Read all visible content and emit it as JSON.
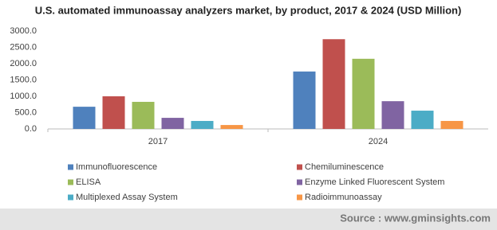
{
  "chart_data": {
    "type": "bar",
    "title": "U.S. automated immunoassay analyzers market, by product, 2017 & 2024 (USD Million)",
    "categories": [
      "2017",
      "2024"
    ],
    "series": [
      {
        "name": "Immunofluorescence",
        "color": "#4f81bd",
        "values": [
          680,
          1760
        ]
      },
      {
        "name": "Chemiluminescence",
        "color": "#c0504d",
        "values": [
          1000,
          2750
        ]
      },
      {
        "name": "ELISA",
        "color": "#9bbb59",
        "values": [
          830,
          2150
        ]
      },
      {
        "name": "Enzyme Linked Fluorescent System",
        "color": "#8064a2",
        "values": [
          340,
          850
        ]
      },
      {
        "name": "Multiplexed Assay System",
        "color": "#4bacc6",
        "values": [
          245,
          560
        ]
      },
      {
        "name": "Radioimmunoassay",
        "color": "#f79646",
        "values": [
          120,
          245
        ]
      }
    ],
    "ylim": [
      0,
      3000
    ],
    "yticks": [
      {
        "value": 0,
        "label": "0.0"
      },
      {
        "value": 500,
        "label": "500.0"
      },
      {
        "value": 1000,
        "label": "1000.0"
      },
      {
        "value": 1500,
        "label": "1500.0"
      },
      {
        "value": 2000,
        "label": "2000.0"
      },
      {
        "value": 2500,
        "label": "2500.0"
      },
      {
        "value": 3000,
        "label": "3000.0"
      }
    ],
    "grid": false,
    "source": "Source : www.gminsights.com"
  }
}
